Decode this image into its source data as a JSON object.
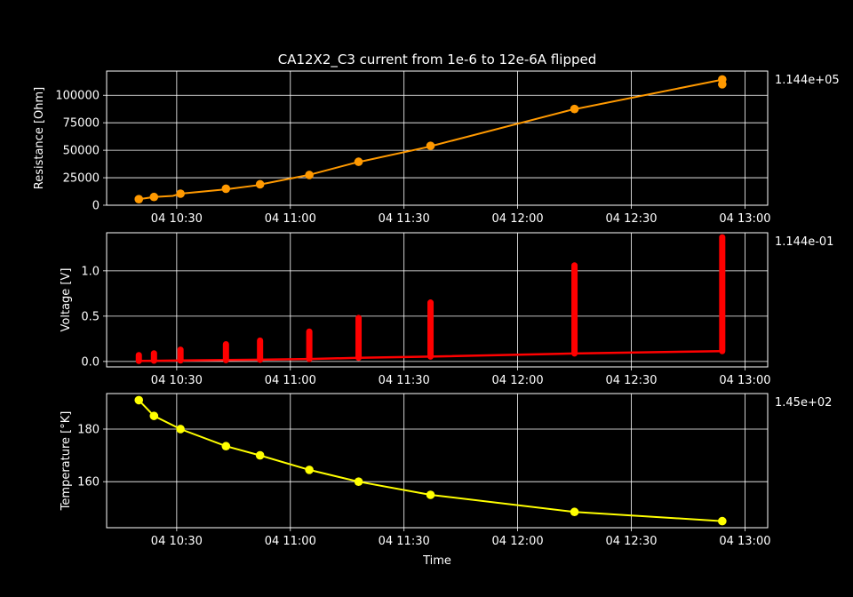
{
  "figure": {
    "title": "CA12X2_C3 current from 1e-6 to 12e-6A flipped",
    "xlabel": "Time",
    "background": "#000000",
    "foreground": "#ffffff"
  },
  "chart_data": [
    {
      "type": "line",
      "ylabel": "Resistance [Ohm]",
      "annotation": "1.144e+05",
      "color": "#ff9900",
      "xlim": [
        "10:11:30",
        "13:06:00"
      ],
      "ylim": [
        0,
        122000
      ],
      "yticks": [
        0,
        25000,
        50000,
        75000,
        100000
      ],
      "ytick_labels": [
        "0",
        "25000",
        "50000",
        "75000",
        "100000"
      ],
      "xticks": [
        "10:30",
        "11:00",
        "11:30",
        "12:00",
        "12:30",
        "13:00"
      ],
      "xtick_labels": [
        "04 10:30",
        "04 11:00",
        "04 11:30",
        "04 12:00",
        "04 12:30",
        "04 13:00"
      ],
      "grid": true,
      "series": [
        {
          "x": [
            "10:20",
            "10:24",
            "10:29",
            "10:31",
            "10:43",
            "10:51",
            "10:53",
            "11:04",
            "11:06",
            "11:17",
            "11:19",
            "11:37",
            "11:38",
            "12:15",
            "12:16",
            "12:53",
            "12:54"
          ],
          "y": [
            5500,
            7500,
            8500,
            10500,
            14500,
            18000,
            19500,
            27000,
            28500,
            38500,
            40000,
            53500,
            54500,
            87500,
            88000,
            113500,
            114400
          ]
        }
      ],
      "markers": [
        {
          "x": "10:20",
          "y": 5500
        },
        {
          "x": "10:24",
          "y": 7500
        },
        {
          "x": "10:31",
          "y": 10500
        },
        {
          "x": "10:43",
          "y": 15000
        },
        {
          "x": "10:52",
          "y": 19000
        },
        {
          "x": "11:05",
          "y": 27500
        },
        {
          "x": "11:18",
          "y": 39500
        },
        {
          "x": "11:37",
          "y": 54000
        },
        {
          "x": "12:15",
          "y": 87500
        },
        {
          "x": "12:54",
          "y": 110000
        },
        {
          "x": "12:54",
          "y": 114400
        }
      ]
    },
    {
      "type": "line",
      "ylabel": "Voltage [V]",
      "annotation": "1.144e-01",
      "color": "#ff0000",
      "xlim": [
        "10:11:30",
        "13:06:00"
      ],
      "ylim": [
        -0.06,
        1.42
      ],
      "yticks": [
        0.0,
        0.5,
        1.0
      ],
      "ytick_labels": [
        "0.0",
        "0.5",
        "1.0"
      ],
      "xticks": [
        "10:30",
        "11:00",
        "11:30",
        "12:00",
        "12:30",
        "13:00"
      ],
      "xtick_labels": [
        "04 10:30",
        "04 11:00",
        "04 11:30",
        "04 12:00",
        "04 12:30",
        "04 13:00"
      ],
      "grid": true,
      "series": [
        {
          "x": [
            "10:20",
            "10:24",
            "10:31",
            "10:43",
            "10:52",
            "11:05",
            "11:18",
            "11:37",
            "12:15",
            "12:54"
          ],
          "y": [
            0.006,
            0.008,
            0.011,
            0.015,
            0.019,
            0.027,
            0.04,
            0.054,
            0.088,
            0.114
          ]
        }
      ],
      "spikes": [
        {
          "x": "10:20",
          "peak": 0.07
        },
        {
          "x": "10:24",
          "peak": 0.09
        },
        {
          "x": "10:31",
          "peak": 0.13
        },
        {
          "x": "10:43",
          "peak": 0.19
        },
        {
          "x": "10:52",
          "peak": 0.23
        },
        {
          "x": "11:05",
          "peak": 0.33
        },
        {
          "x": "11:18",
          "peak": 0.48
        },
        {
          "x": "11:37",
          "peak": 0.65
        },
        {
          "x": "12:15",
          "peak": 1.06
        },
        {
          "x": "12:54",
          "peak": 1.37
        }
      ]
    },
    {
      "type": "line",
      "ylabel": "Temperature [°K]",
      "annotation": "1.45e+02",
      "color": "#ffff00",
      "xlim": [
        "10:11:30",
        "13:06:00"
      ],
      "ylim": [
        142.5,
        193.5
      ],
      "yticks": [
        160,
        180
      ],
      "ytick_labels": [
        "160",
        "180"
      ],
      "xticks": [
        "10:30",
        "11:00",
        "11:30",
        "12:00",
        "12:30",
        "13:00"
      ],
      "xtick_labels": [
        "04 10:30",
        "04 11:00",
        "04 11:30",
        "04 12:00",
        "04 12:30",
        "04 13:00"
      ],
      "grid": true,
      "series": [
        {
          "x": [
            "10:20",
            "10:24",
            "10:31",
            "10:43",
            "10:52",
            "11:05",
            "11:18",
            "11:37",
            "12:15",
            "12:54"
          ],
          "y": [
            191,
            185,
            180,
            173.5,
            170,
            164.5,
            160,
            155,
            148.5,
            145
          ]
        }
      ],
      "markers": [
        {
          "x": "10:20",
          "y": 191
        },
        {
          "x": "10:24",
          "y": 185
        },
        {
          "x": "10:31",
          "y": 180
        },
        {
          "x": "10:43",
          "y": 173.5
        },
        {
          "x": "10:52",
          "y": 170
        },
        {
          "x": "11:05",
          "y": 164.5
        },
        {
          "x": "11:18",
          "y": 160
        },
        {
          "x": "11:37",
          "y": 155
        },
        {
          "x": "12:15",
          "y": 148.5
        },
        {
          "x": "12:54",
          "y": 145
        }
      ]
    }
  ]
}
